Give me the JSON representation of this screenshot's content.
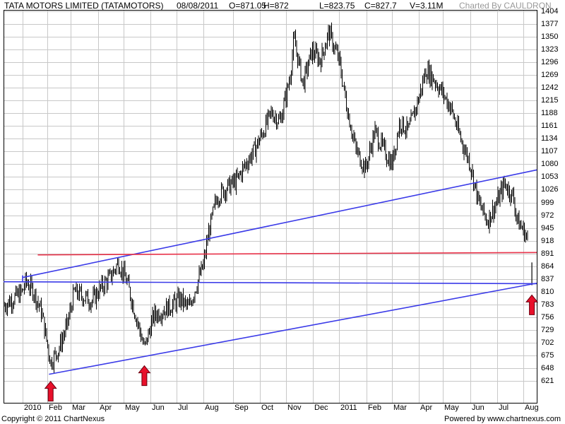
{
  "header": {
    "title": "TATA MOTORS LIMITED (TATAMOTORS)",
    "date": "08/08/2011",
    "open": "O=871.05",
    "high": "H=872",
    "low": "L=823.75",
    "close": "C=827.7",
    "volume": "V=3.11M",
    "charted_by": "Charted By CAULDRON"
  },
  "footer": {
    "copyright": "Copyright © 2011 ChartNexus",
    "powered_by": "Powered by www.chartnexus.com"
  },
  "colors": {
    "price_bars": "#000000",
    "trendlines": "#3b3be8",
    "resistance": "#e8334a",
    "arrows": "#e8102a",
    "grid": "#c8c8c8"
  },
  "chart_data": {
    "type": "ohlc",
    "title": "TATA MOTORS LIMITED (TATAMOTORS)",
    "y_ticks": [
      621,
      648,
      675,
      702,
      729,
      756,
      783,
      810,
      837,
      864,
      891,
      918,
      945,
      972,
      999,
      1026,
      1053,
      1080,
      1107,
      1134,
      1161,
      1188,
      1215,
      1242,
      1269,
      1296,
      1323,
      1350,
      1377,
      1404
    ],
    "ylim": [
      594,
      1404
    ],
    "x_ticks": [
      "2010",
      "Feb",
      "Mar",
      "Apr",
      "May",
      "Jun",
      "Jul",
      "Aug",
      "Sep",
      "Oct",
      "Nov",
      "Dec",
      "2011",
      "Feb",
      "Mar",
      "Apr",
      "May",
      "Jun",
      "Jul",
      "Aug"
    ],
    "approx_close_path": [
      [
        "2009-12-14",
        780
      ],
      [
        "2010-01-01",
        810
      ],
      [
        "2010-01-05",
        832
      ],
      [
        "2010-01-15",
        810
      ],
      [
        "2010-01-25",
        765
      ],
      [
        "2010-02-05",
        660
      ],
      [
        "2010-02-15",
        690
      ],
      [
        "2010-02-25",
        740
      ],
      [
        "2010-03-05",
        810
      ],
      [
        "2010-03-15",
        800
      ],
      [
        "2010-03-25",
        790
      ],
      [
        "2010-04-05",
        820
      ],
      [
        "2010-04-15",
        840
      ],
      [
        "2010-04-25",
        872
      ],
      [
        "2010-05-05",
        830
      ],
      [
        "2010-05-15",
        760
      ],
      [
        "2010-05-25",
        690
      ],
      [
        "2010-06-05",
        760
      ],
      [
        "2010-06-15",
        770
      ],
      [
        "2010-06-25",
        780
      ],
      [
        "2010-07-05",
        795
      ],
      [
        "2010-07-15",
        775
      ],
      [
        "2010-07-25",
        830
      ],
      [
        "2010-08-01",
        865
      ],
      [
        "2010-08-06",
        930
      ],
      [
        "2010-08-15",
        1010
      ],
      [
        "2010-08-25",
        1030
      ],
      [
        "2010-09-05",
        1045
      ],
      [
        "2010-09-15",
        1080
      ],
      [
        "2010-09-25",
        1110
      ],
      [
        "2010-10-05",
        1150
      ],
      [
        "2010-10-15",
        1190
      ],
      [
        "2010-10-25",
        1170
      ],
      [
        "2010-11-05",
        1260
      ],
      [
        "2010-11-10",
        1345
      ],
      [
        "2010-11-20",
        1250
      ],
      [
        "2010-11-30",
        1320
      ],
      [
        "2010-12-10",
        1300
      ],
      [
        "2010-12-20",
        1360
      ],
      [
        "2011-01-01",
        1300
      ],
      [
        "2011-01-10",
        1200
      ],
      [
        "2011-01-20",
        1110
      ],
      [
        "2011-01-31",
        1070
      ],
      [
        "2011-02-10",
        1150
      ],
      [
        "2011-02-20",
        1110
      ],
      [
        "2011-03-01",
        1080
      ],
      [
        "2011-03-10",
        1170
      ],
      [
        "2011-03-20",
        1150
      ],
      [
        "2011-04-01",
        1220
      ],
      [
        "2011-04-10",
        1280
      ],
      [
        "2011-04-20",
        1260
      ],
      [
        "2011-05-01",
        1230
      ],
      [
        "2011-05-10",
        1200
      ],
      [
        "2011-05-20",
        1140
      ],
      [
        "2011-06-01",
        1080
      ],
      [
        "2011-06-10",
        1000
      ],
      [
        "2011-06-20",
        960
      ],
      [
        "2011-07-01",
        1000
      ],
      [
        "2011-07-10",
        1040
      ],
      [
        "2011-07-20",
        1010
      ],
      [
        "2011-07-25",
        960
      ],
      [
        "2011-08-01",
        940
      ],
      [
        "2011-08-05",
        920
      ],
      [
        "2011-08-08",
        827.7
      ]
    ],
    "annotations": {
      "upper_channel_line": {
        "from": [
          "2010-01-01",
          840
        ],
        "to": [
          "2011-08-12",
          1068
        ]
      },
      "lower_channel_line": {
        "from": [
          "2010-02-03",
          635
        ],
        "to": [
          "2011-08-12",
          828
        ]
      },
      "support_line": {
        "from": [
          "2009-12-14",
          831
        ],
        "to": [
          "2011-08-12",
          827
        ]
      },
      "resistance_line": {
        "from": [
          "2010-01-20",
          888
        ],
        "to": [
          "2011-08-12",
          893
        ]
      },
      "up_arrows_at": [
        [
          "2010-02-05",
          635
        ],
        [
          "2010-05-25",
          668
        ],
        [
          "2011-08-08",
          818
        ]
      ]
    }
  }
}
